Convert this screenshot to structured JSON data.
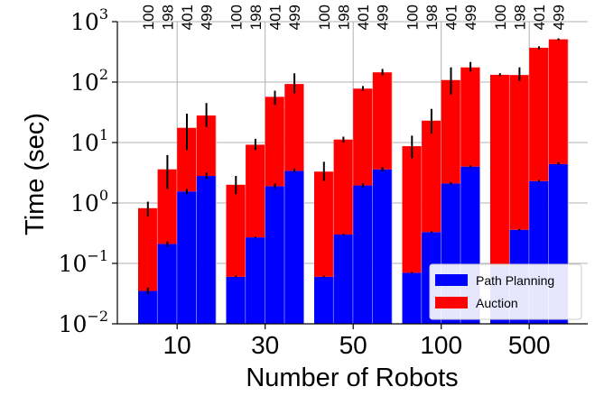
{
  "chart_data": {
    "type": "bar",
    "title": "",
    "xlabel": "Number of Robots",
    "ylabel": "Time (sec)",
    "yscale": "log",
    "ylim": [
      0.01,
      1000
    ],
    "y_ticks": [
      {
        "value": 0.01,
        "base": "10",
        "exp": "−2"
      },
      {
        "value": 0.1,
        "base": "10",
        "exp": "−1"
      },
      {
        "value": 1,
        "base": "10",
        "exp": "0"
      },
      {
        "value": 10,
        "base": "10",
        "exp": "1"
      },
      {
        "value": 100,
        "base": "10",
        "exp": "2"
      },
      {
        "value": 1000,
        "base": "10",
        "exp": "3"
      }
    ],
    "grid": true,
    "stacked": true,
    "legend_position": "bottom-right",
    "categories": [
      "10",
      "30",
      "50",
      "100",
      "500"
    ],
    "sub_labels": [
      "100",
      "198",
      "401",
      "499"
    ],
    "series": [
      {
        "name": "Path Planning",
        "color": "#0000ff",
        "values": [
          [
            0.035,
            0.21,
            1.55,
            2.8
          ],
          [
            0.06,
            0.27,
            1.9,
            3.4
          ],
          [
            0.06,
            0.3,
            1.95,
            3.6
          ],
          [
            0.07,
            0.33,
            2.1,
            4.0
          ],
          [
            0.09,
            0.36,
            2.3,
            4.4
          ]
        ]
      },
      {
        "name": "Auction",
        "color": "#ff0000",
        "values": [
          [
            0.82,
            3.6,
            17.5,
            28
          ],
          [
            2.0,
            9.2,
            57,
            93
          ],
          [
            3.3,
            11.2,
            78,
            145
          ],
          [
            8.7,
            23,
            108,
            175
          ],
          [
            132,
            131,
            370,
            510
          ]
        ]
      }
    ],
    "errors_total": [
      [
        [
          0.6,
          1.05
        ],
        [
          1.7,
          6.2
        ],
        [
          7.5,
          30
        ],
        [
          18,
          45
        ]
      ],
      [
        [
          1.4,
          2.8
        ],
        [
          7.5,
          11.5
        ],
        [
          42,
          72
        ],
        [
          65,
          140
        ]
      ],
      [
        [
          2.3,
          4.8
        ],
        [
          10,
          12.5
        ],
        [
          72,
          86
        ],
        [
          130,
          165
        ]
      ],
      [
        [
          5.5,
          13
        ],
        [
          14,
          36
        ],
        [
          62,
          175
        ],
        [
          150,
          215
        ]
      ],
      [
        [
          125,
          140
        ],
        [
          105,
          175
        ],
        [
          350,
          390
        ],
        [
          490,
          530
        ]
      ]
    ],
    "errors_path": [
      [
        [
          0.031,
          0.04
        ],
        [
          0.19,
          0.23
        ],
        [
          1.4,
          1.7
        ],
        [
          2.5,
          3.2
        ]
      ],
      [
        [
          0.058,
          0.063
        ],
        [
          0.26,
          0.28
        ],
        [
          1.75,
          2.1
        ],
        [
          3.2,
          3.7
        ]
      ],
      [
        [
          0.058,
          0.063
        ],
        [
          0.29,
          0.31
        ],
        [
          1.8,
          2.1
        ],
        [
          3.3,
          3.9
        ]
      ],
      [
        [
          0.068,
          0.072
        ],
        [
          0.32,
          0.34
        ],
        [
          2.0,
          2.2
        ],
        [
          3.8,
          4.2
        ]
      ],
      [
        [
          0.088,
          0.093
        ],
        [
          0.35,
          0.37
        ],
        [
          2.2,
          2.4
        ],
        [
          4.2,
          4.7
        ]
      ]
    ]
  }
}
